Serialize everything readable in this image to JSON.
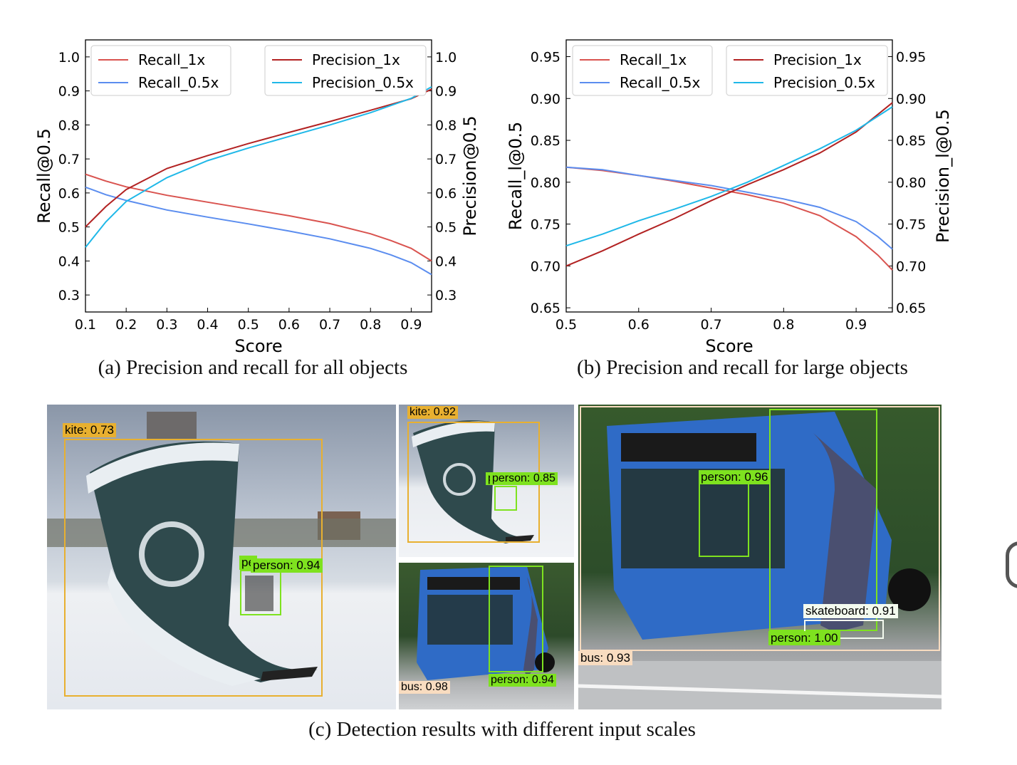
{
  "chart_data": [
    {
      "id": "a",
      "type": "line",
      "xlabel": "Score",
      "ylabel_left": "Recall@0.5",
      "ylabel_right": "Precision@0.5",
      "xlim": [
        0.1,
        0.95
      ],
      "ylim": [
        0.25,
        1.05
      ],
      "xticks": [
        "0.1",
        "0.2",
        "0.3",
        "0.4",
        "0.5",
        "0.6",
        "0.7",
        "0.8",
        "0.9"
      ],
      "yticks": [
        "0.3",
        "0.4",
        "0.5",
        "0.6",
        "0.7",
        "0.8",
        "0.9",
        "1.0"
      ],
      "legend_left": [
        "Recall_1x",
        "Recall_0.5x"
      ],
      "legend_right": [
        "Precision_1x",
        "Precision_0.5x"
      ],
      "series": [
        {
          "name": "Recall_1x",
          "color": "#d9534f",
          "x": [
            0.1,
            0.15,
            0.2,
            0.3,
            0.4,
            0.5,
            0.6,
            0.7,
            0.8,
            0.85,
            0.9,
            0.95
          ],
          "y": [
            0.655,
            0.635,
            0.618,
            0.593,
            0.573,
            0.553,
            0.533,
            0.51,
            0.48,
            0.46,
            0.437,
            0.4
          ]
        },
        {
          "name": "Recall_0.5x",
          "color": "#5b8def",
          "x": [
            0.1,
            0.15,
            0.2,
            0.3,
            0.4,
            0.5,
            0.6,
            0.7,
            0.8,
            0.85,
            0.9,
            0.95
          ],
          "y": [
            0.617,
            0.595,
            0.578,
            0.55,
            0.529,
            0.509,
            0.488,
            0.465,
            0.437,
            0.418,
            0.395,
            0.36
          ]
        },
        {
          "name": "Precision_1x",
          "color": "#b22222",
          "x": [
            0.1,
            0.15,
            0.2,
            0.3,
            0.4,
            0.5,
            0.6,
            0.7,
            0.8,
            0.9,
            0.95
          ],
          "y": [
            0.5,
            0.56,
            0.61,
            0.672,
            0.71,
            0.745,
            0.778,
            0.81,
            0.843,
            0.877,
            0.905
          ]
        },
        {
          "name": "Precision_0.5x",
          "color": "#1fb8e8",
          "x": [
            0.1,
            0.15,
            0.2,
            0.3,
            0.4,
            0.5,
            0.6,
            0.7,
            0.8,
            0.9,
            0.95
          ],
          "y": [
            0.44,
            0.515,
            0.575,
            0.645,
            0.695,
            0.732,
            0.766,
            0.8,
            0.836,
            0.878,
            0.912
          ]
        }
      ]
    },
    {
      "id": "b",
      "type": "line",
      "xlabel": "Score",
      "ylabel_left": "Recall_l@0.5",
      "ylabel_right": "Precision_l@0.5",
      "xlim": [
        0.5,
        0.95
      ],
      "ylim": [
        0.645,
        0.97
      ],
      "xticks": [
        "0.5",
        "0.6",
        "0.7",
        "0.8",
        "0.9"
      ],
      "yticks": [
        "0.65",
        "0.70",
        "0.75",
        "0.80",
        "0.85",
        "0.90",
        "0.95"
      ],
      "legend_left": [
        "Recall_1x",
        "Recall_0.5x"
      ],
      "legend_right": [
        "Precision_1x",
        "Precision_0.5x"
      ],
      "series": [
        {
          "name": "Recall_1x",
          "color": "#d9534f",
          "x": [
            0.5,
            0.55,
            0.6,
            0.65,
            0.7,
            0.75,
            0.8,
            0.85,
            0.9,
            0.93,
            0.95
          ],
          "y": [
            0.818,
            0.814,
            0.808,
            0.801,
            0.793,
            0.785,
            0.775,
            0.76,
            0.735,
            0.713,
            0.695
          ]
        },
        {
          "name": "Recall_0.5x",
          "color": "#5b8def",
          "x": [
            0.5,
            0.55,
            0.6,
            0.65,
            0.7,
            0.75,
            0.8,
            0.85,
            0.9,
            0.93,
            0.95
          ],
          "y": [
            0.818,
            0.815,
            0.808,
            0.802,
            0.796,
            0.788,
            0.78,
            0.77,
            0.753,
            0.735,
            0.72
          ]
        },
        {
          "name": "Precision_1x",
          "color": "#b22222",
          "x": [
            0.5,
            0.55,
            0.6,
            0.65,
            0.7,
            0.75,
            0.8,
            0.85,
            0.9,
            0.95
          ],
          "y": [
            0.7,
            0.718,
            0.738,
            0.757,
            0.778,
            0.797,
            0.815,
            0.835,
            0.86,
            0.895
          ]
        },
        {
          "name": "Precision_0.5x",
          "color": "#1fb8e8",
          "x": [
            0.5,
            0.55,
            0.6,
            0.65,
            0.7,
            0.75,
            0.8,
            0.85,
            0.9,
            0.95
          ],
          "y": [
            0.724,
            0.738,
            0.754,
            0.768,
            0.783,
            0.8,
            0.82,
            0.84,
            0.862,
            0.89
          ]
        }
      ]
    }
  ],
  "captions": {
    "a": "(a) Precision and recall for all objects",
    "b": "(b) Precision and recall for large objects",
    "c": "(c) Detection results with different input scales"
  },
  "colors": {
    "kite": "#e8b030",
    "person": "#7ee21f",
    "bus": "#f8dcc0",
    "skateboard": "#f4fbef"
  },
  "photos": {
    "kite_large": {
      "labels": [
        "kite: 0.73",
        "pe",
        "person: 0.94"
      ]
    },
    "kite_small": {
      "labels": [
        "kite: 0.92",
        "p",
        "person: 0.85"
      ]
    },
    "bus_small": {
      "labels": [
        "bus: 0.98",
        "person: 0.94"
      ]
    },
    "bus_large": {
      "labels": [
        "person: 0.96",
        "skateboard: 0.91",
        "person: 1.00",
        "bus: 0.93"
      ]
    }
  }
}
